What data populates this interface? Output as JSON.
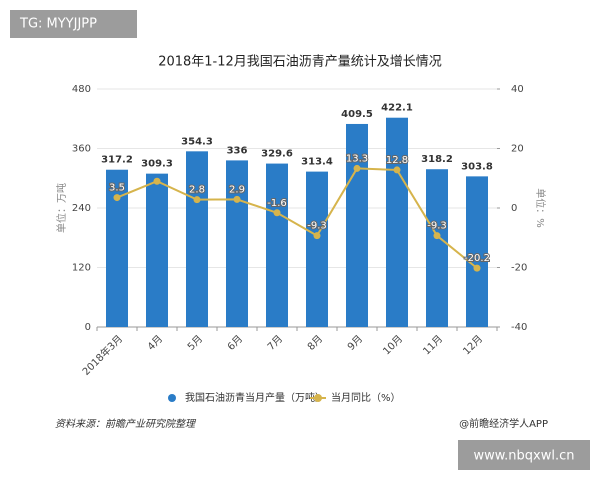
{
  "tag": "TG: MYYJJPP",
  "watermark": "www.nbqxwl.cn",
  "chart_data": {
    "type": "bar",
    "title": "2018年1-12月我国石油沥青产量统计及增长情况",
    "ylabel": "单位：万吨",
    "y2label": "单位：%",
    "categories": [
      "2018年3月",
      "4月",
      "5月",
      "6月",
      "7月",
      "8月",
      "9月",
      "10月",
      "11月",
      "12月"
    ],
    "series": [
      {
        "name": "我国石油沥青当月产量（万吨）",
        "type": "bar",
        "color": "#2a7cc7",
        "values": [
          317.2,
          309.3,
          354.3,
          336,
          329.6,
          313.4,
          409.5,
          422.1,
          318.2,
          303.8
        ]
      },
      {
        "name": "当月同比（%）",
        "type": "line",
        "axis": "y2",
        "color": "#d6b44c",
        "values": [
          3.5,
          9,
          2.8,
          2.9,
          -1.6,
          -9.3,
          13.3,
          12.8,
          -9.3,
          -20.2
        ],
        "value_labels": [
          "3.5",
          null,
          "2.8",
          "2.9",
          "-1.6",
          "-9.3",
          "13.3",
          "12.8",
          "-9.3",
          "-20.2"
        ]
      }
    ],
    "ylim": [
      0,
      480
    ],
    "yticks": [
      0,
      120,
      240,
      360,
      480
    ],
    "y2lim": [
      -40,
      40
    ],
    "y2ticks": [
      -40,
      -20,
      0,
      20,
      40
    ],
    "source": "资料来源：前瞻产业研究院整理",
    "credit": "@前瞻经济学人APP"
  }
}
